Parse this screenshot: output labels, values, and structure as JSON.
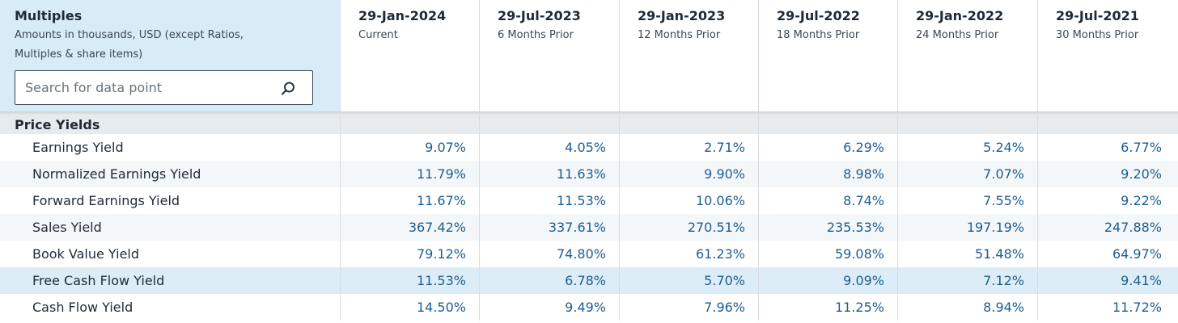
{
  "panel": {
    "title": "Multiples",
    "subtitle": "Amounts in thousands, USD (except Ratios, Multiples & share items)",
    "search_placeholder": "Search for data point",
    "search_icon": "search-icon"
  },
  "columns": [
    {
      "date": "29-Jan-2024",
      "relative": "Current"
    },
    {
      "date": "29-Jul-2023",
      "relative": "6 Months Prior"
    },
    {
      "date": "29-Jan-2023",
      "relative": "12 Months Prior"
    },
    {
      "date": "29-Jul-2022",
      "relative": "18 Months Prior"
    },
    {
      "date": "29-Jan-2022",
      "relative": "24 Months Prior"
    },
    {
      "date": "29-Jul-2021",
      "relative": "30 Months Prior"
    }
  ],
  "section": {
    "label": "Price Yields"
  },
  "rows": [
    {
      "label": "Earnings Yield",
      "values": [
        "9.07%",
        "4.05%",
        "2.71%",
        "6.29%",
        "5.24%",
        "6.77%"
      ]
    },
    {
      "label": "Normalized Earnings Yield",
      "values": [
        "11.79%",
        "11.63%",
        "9.90%",
        "8.98%",
        "7.07%",
        "9.20%"
      ]
    },
    {
      "label": "Forward Earnings Yield",
      "values": [
        "11.67%",
        "11.53%",
        "10.06%",
        "8.74%",
        "7.55%",
        "9.22%"
      ]
    },
    {
      "label": "Sales Yield",
      "values": [
        "367.42%",
        "337.61%",
        "270.51%",
        "235.53%",
        "197.19%",
        "247.88%"
      ]
    },
    {
      "label": "Book Value Yield",
      "values": [
        "79.12%",
        "74.80%",
        "61.23%",
        "59.08%",
        "51.48%",
        "64.97%"
      ]
    },
    {
      "label": "Free Cash Flow Yield",
      "values": [
        "11.53%",
        "6.78%",
        "5.70%",
        "9.09%",
        "7.12%",
        "9.41%"
      ]
    },
    {
      "label": "Cash Flow Yield",
      "values": [
        "14.50%",
        "9.49%",
        "7.96%",
        "11.25%",
        "8.94%",
        "11.72%"
      ]
    }
  ],
  "colors": {
    "header_panel": "#d8ecf8",
    "highlight_row": "#dcedf8",
    "value_text": "#1d5d91",
    "section_bg": "#e7ebee"
  }
}
